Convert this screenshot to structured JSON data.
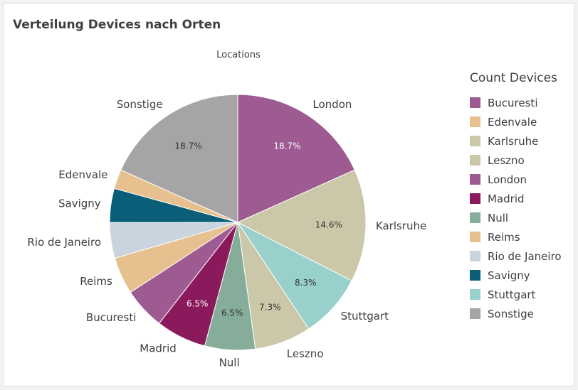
{
  "chart_data": {
    "type": "pie",
    "title": "Verteilung Devices nach Orten",
    "subtitle": "Locations",
    "legend_title": "Count Devices",
    "legend_position": "right",
    "slices": [
      {
        "name": "London",
        "value": 18.7,
        "label": "18.7%",
        "color": "#9d5b92"
      },
      {
        "name": "Karlsruhe",
        "value": 14.6,
        "label": "14.6%",
        "color": "#cac8a8"
      },
      {
        "name": "Stuttgart",
        "value": 8.3,
        "label": "8.3%",
        "color": "#98d0cc"
      },
      {
        "name": "Leszno",
        "value": 7.3,
        "label": "7.3%",
        "color": "#cac8a8"
      },
      {
        "name": "Null",
        "value": 6.5,
        "label": "6.5%",
        "color": "#85ad9a"
      },
      {
        "name": "Madrid",
        "value": 6.5,
        "label": "6.5%",
        "color": "#8a1a5c"
      },
      {
        "name": "Bucuresti",
        "value": 5.4,
        "label": "",
        "color": "#9d5b92"
      },
      {
        "name": "Reims",
        "value": 4.8,
        "label": "",
        "color": "#e7c08f"
      },
      {
        "name": "Rio de Janeiro",
        "value": 4.6,
        "label": "",
        "color": "#c9d4de"
      },
      {
        "name": "Savigny",
        "value": 4.4,
        "label": "",
        "color": "#0a5e78"
      },
      {
        "name": "Edenvale",
        "value": 2.5,
        "label": "",
        "color": "#e7c08f"
      },
      {
        "name": "Sonstige",
        "value": 18.7,
        "label": "18.7%",
        "color": "#a5a5a5"
      }
    ],
    "legend": [
      {
        "name": "Bucuresti",
        "color": "#9d5b92"
      },
      {
        "name": "Edenvale",
        "color": "#e7c08f"
      },
      {
        "name": "Karlsruhe",
        "color": "#cac8a8"
      },
      {
        "name": "Leszno",
        "color": "#cac8a8"
      },
      {
        "name": "London",
        "color": "#9d5b92"
      },
      {
        "name": "Madrid",
        "color": "#8a1a5c"
      },
      {
        "name": "Null",
        "color": "#85ad9a"
      },
      {
        "name": "Reims",
        "color": "#e7c08f"
      },
      {
        "name": "Rio de Janeiro",
        "color": "#c9d4de"
      },
      {
        "name": "Savigny",
        "color": "#0a5e78"
      },
      {
        "name": "Stuttgart",
        "color": "#98d0cc"
      },
      {
        "name": "Sonstige",
        "color": "#a5a5a5"
      }
    ]
  }
}
